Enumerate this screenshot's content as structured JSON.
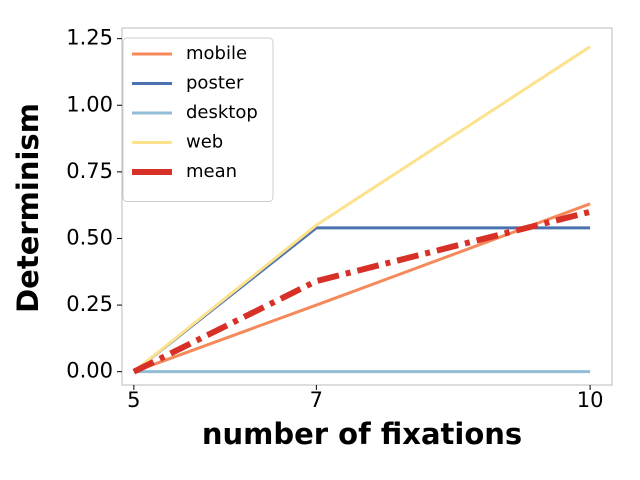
{
  "chart_data": {
    "type": "line",
    "x_label": "number of fixations",
    "y_label": "Determinism",
    "x": [
      5,
      7,
      10
    ],
    "series": [
      {
        "name": "mobile",
        "color": "#f4895a",
        "values": [
          0,
          0.25,
          0.63
        ]
      },
      {
        "name": "poster",
        "color": "#4a72b0",
        "values": [
          0,
          0.54,
          0.54
        ]
      },
      {
        "name": "desktop",
        "color": "#92bdd6",
        "values": [
          0,
          0,
          0
        ]
      },
      {
        "name": "web",
        "color": "#fce28c",
        "values": [
          0,
          0.55,
          1.22
        ]
      },
      {
        "name": "mean",
        "color": "#d73027",
        "values": [
          0,
          0.34,
          0.6
        ],
        "dash": "dashdot",
        "thick": true
      }
    ],
    "xlim": [
      4.87,
      10.24
    ],
    "xticks": [
      5,
      7,
      10
    ],
    "ylim": [
      -0.05,
      1.29
    ],
    "yticks": [
      {
        "value": 0,
        "label": "0.00"
      },
      {
        "value": 0.25,
        "label": "0.25"
      },
      {
        "value": 0.5,
        "label": "0.50"
      },
      {
        "value": 0.75,
        "label": "0.75"
      },
      {
        "value": 1,
        "label": "1.00"
      },
      {
        "value": 1.25,
        "label": "1.25"
      }
    ],
    "legend": "upper left",
    "grid": false
  }
}
